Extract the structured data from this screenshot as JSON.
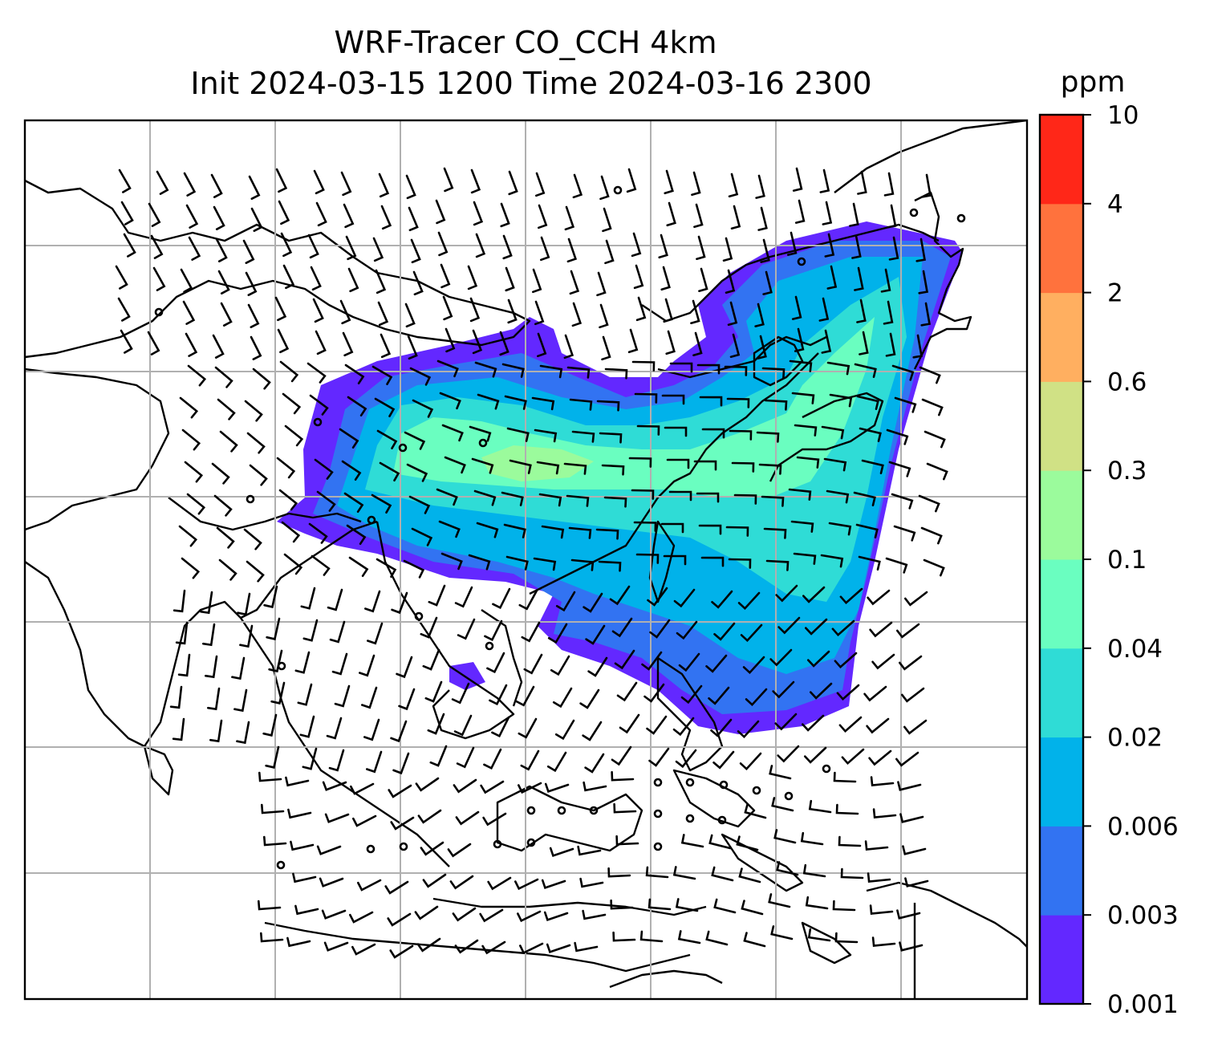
{
  "title": {
    "line1": "WRF-Tracer CO_CCH 4km",
    "line2": "Init 2024-03-15 1200 Time 2024-03-16 2300"
  },
  "colorbar": {
    "unit": "ppm",
    "levels": [
      "0.001",
      "0.003",
      "0.006",
      "0.02",
      "0.04",
      "0.1",
      "0.3",
      "0.6",
      "2",
      "4",
      "10"
    ],
    "colors": [
      "#6328ff",
      "#3273f2",
      "#01b2ea",
      "#2fdcd6",
      "#6afec0",
      "#9bfb9c",
      "#d0e185",
      "#ffaf60",
      "#ff723d",
      "#ff2718"
    ]
  },
  "chart_data": {
    "type": "heatmap",
    "variable": "CO_CCH tracer",
    "unit": "ppm",
    "contour_levels": [
      0.001,
      0.003,
      0.006,
      0.02,
      0.04,
      0.1,
      0.3,
      0.6,
      2,
      4,
      10
    ],
    "overlays": [
      "coastlines",
      "country borders",
      "lat/lon gridlines",
      "wind barbs"
    ],
    "grid": true
  }
}
